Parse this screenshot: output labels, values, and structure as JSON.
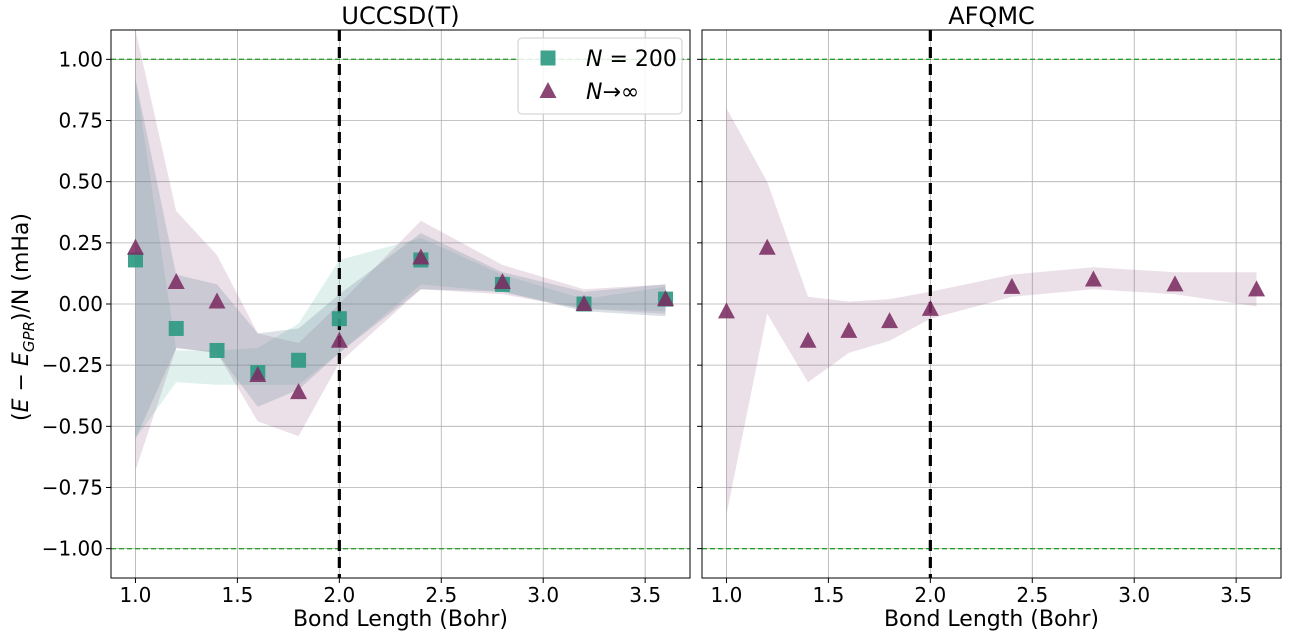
{
  "chart_data": [
    {
      "type": "scatter",
      "title": "UCCSD(T)",
      "xlabel": "Bond Length (Bohr)",
      "ylabel": "(E − E_GPR)/N (mHa)",
      "xlim": [
        0.88,
        3.72
      ],
      "ylim": [
        -1.12,
        1.12
      ],
      "xticks": [
        1.0,
        1.5,
        2.0,
        2.5,
        3.0,
        3.5
      ],
      "xtick_labels": [
        "1.0",
        "1.5",
        "2.0",
        "2.5",
        "3.0",
        "3.5"
      ],
      "yticks": [
        1.0,
        0.75,
        0.5,
        0.25,
        0.0,
        -0.25,
        -0.5,
        -0.75,
        -1.0
      ],
      "ytick_labels": [
        "1.00",
        "0.75",
        "0.50",
        "0.25",
        "0.00",
        "−0.25",
        "−0.50",
        "−0.75",
        "−1.00"
      ],
      "grid": true,
      "legend_position": "top-right",
      "vline_x": 2.0,
      "hlines_y": [
        1.0,
        -1.0
      ],
      "series": [
        {
          "name": "N = 200",
          "legend_prefix": "N",
          "legend_suffix": " = 200",
          "marker": "square",
          "color": "#2e9a83",
          "band_color": "#2e9a83",
          "x": [
            1.0,
            1.2,
            1.4,
            1.6,
            1.8,
            2.0,
            2.4,
            2.8,
            3.2,
            3.6
          ],
          "y": [
            0.18,
            -0.1,
            -0.19,
            -0.28,
            -0.23,
            -0.06,
            0.18,
            0.08,
            0.0,
            0.02
          ],
          "upper": [
            0.92,
            -0.19,
            -0.19,
            -0.18,
            -0.08,
            0.18,
            0.27,
            0.12,
            0.02,
            0.07
          ],
          "lower": [
            -0.55,
            -0.32,
            -0.33,
            -0.33,
            -0.33,
            -0.2,
            0.08,
            0.05,
            -0.02,
            -0.03
          ]
        },
        {
          "name": "N→∞",
          "legend_prefix": "N",
          "legend_suffix": "→∞",
          "marker": "triangle",
          "color": "#7b2c62",
          "band_color": "#7b2c62",
          "x": [
            1.0,
            1.2,
            1.4,
            1.6,
            1.8,
            2.0,
            2.4,
            2.8,
            3.2,
            3.6
          ],
          "y": [
            0.23,
            0.09,
            0.01,
            -0.29,
            -0.36,
            -0.15,
            0.19,
            0.09,
            0.0,
            0.02
          ],
          "upper": [
            1.12,
            0.38,
            0.2,
            -0.12,
            -0.16,
            0.0,
            0.34,
            0.16,
            0.06,
            0.08
          ],
          "lower": [
            -0.68,
            -0.18,
            -0.2,
            -0.48,
            -0.54,
            -0.24,
            0.06,
            0.04,
            -0.02,
            -0.04
          ]
        },
        {
          "name": "overlap",
          "band_only": true,
          "band_color": "#7a8fa0",
          "x": [
            1.0,
            1.2,
            1.4,
            1.6,
            1.8,
            2.0,
            2.4,
            2.8,
            3.2,
            3.6
          ],
          "upper": [
            0.92,
            0.12,
            0.08,
            -0.12,
            -0.1,
            0.04,
            0.29,
            0.13,
            0.05,
            0.08
          ],
          "lower": [
            -0.55,
            -0.18,
            -0.2,
            -0.42,
            -0.35,
            -0.2,
            0.06,
            0.05,
            -0.03,
            -0.05
          ]
        }
      ]
    },
    {
      "type": "scatter",
      "title": "AFQMC",
      "xlabel": "Bond Length (Bohr)",
      "xlim": [
        0.88,
        3.72
      ],
      "ylim": [
        -1.12,
        1.12
      ],
      "xticks": [
        1.0,
        1.5,
        2.0,
        2.5,
        3.0,
        3.5
      ],
      "xtick_labels": [
        "1.0",
        "1.5",
        "2.0",
        "2.5",
        "3.0",
        "3.5"
      ],
      "grid": true,
      "vline_x": 2.0,
      "hlines_y": [
        1.0,
        -1.0
      ],
      "series": [
        {
          "name": "N→∞",
          "marker": "triangle",
          "color": "#7b2c62",
          "band_color": "#7b2c62",
          "x": [
            1.0,
            1.2,
            1.4,
            1.6,
            1.8,
            2.0,
            2.4,
            2.8,
            3.2,
            3.6
          ],
          "y": [
            -0.03,
            0.23,
            -0.15,
            -0.11,
            -0.07,
            -0.02,
            0.07,
            0.1,
            0.08,
            0.06
          ],
          "upper": [
            0.8,
            0.5,
            0.03,
            0.01,
            0.02,
            0.05,
            0.12,
            0.15,
            0.13,
            0.13
          ],
          "lower": [
            -0.86,
            -0.04,
            -0.32,
            -0.2,
            -0.15,
            -0.06,
            0.03,
            0.06,
            0.04,
            -0.01
          ]
        }
      ]
    }
  ]
}
